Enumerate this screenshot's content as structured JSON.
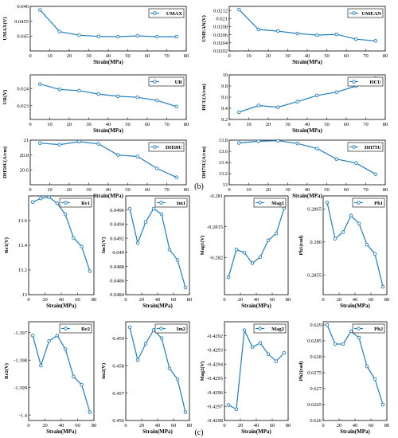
{
  "colors": {
    "series": "#1f7fbf",
    "axis": "#000000",
    "legend_border": "#000000"
  },
  "captions": {
    "b": "(b)",
    "c": "(c)"
  },
  "chart_data": [
    {
      "id": "umax",
      "type": "line",
      "row": "b",
      "legend": "UMAX",
      "xlabel": "Strain(MPa)",
      "ylabel": "UMAX(V)",
      "xlim": [
        0,
        80
      ],
      "xticks": [
        0,
        10,
        20,
        30,
        40,
        50,
        60,
        70,
        80
      ],
      "ylim": [
        0.0445,
        0.046
      ],
      "yticks": [
        "0.045",
        "0.0455",
        "0.046"
      ],
      "ytick_values": [
        0.045,
        0.0455,
        0.046
      ],
      "x": [
        5,
        15,
        25,
        35,
        45,
        55,
        65,
        75
      ],
      "values": [
        0.04588,
        0.04515,
        0.04503,
        0.04499,
        0.04498,
        0.04501,
        0.04498,
        0.04498
      ]
    },
    {
      "id": "umean",
      "type": "line",
      "row": "b",
      "legend": "UMEAN",
      "xlabel": "Strain(MPa)",
      "ylabel": "UMEAN(V)",
      "xlim": [
        0,
        80
      ],
      "xticks": [
        0,
        10,
        20,
        30,
        40,
        50,
        60,
        70,
        80
      ],
      "ylim": [
        0.0202,
        0.0213
      ],
      "yticks": [
        "0.0202",
        "0.0204",
        "0.0206",
        "0.0208",
        "0.021",
        "0.0212"
      ],
      "ytick_values": [
        0.0202,
        0.0204,
        0.0206,
        0.0208,
        0.021,
        0.0212
      ],
      "x": [
        5,
        15,
        25,
        35,
        45,
        55,
        65,
        75
      ],
      "values": [
        0.02122,
        0.02073,
        0.02069,
        0.02063,
        0.02059,
        0.02061,
        0.02049,
        0.02045
      ]
    },
    {
      "id": "ur",
      "type": "line",
      "row": "b",
      "legend": "UR",
      "xlabel": "Strain(MPa)",
      "ylabel": "UR(V)",
      "xlim": [
        0,
        80
      ],
      "xticks": [
        0,
        10,
        20,
        30,
        40,
        50,
        60,
        70,
        80
      ],
      "ylim": [
        0.0222,
        0.0248
      ],
      "yticks": [
        "0.023",
        "0.024"
      ],
      "ytick_values": [
        0.023,
        0.024
      ],
      "x": [
        5,
        15,
        25,
        35,
        45,
        55,
        65,
        75
      ],
      "values": [
        0.02426,
        0.02395,
        0.02388,
        0.02368,
        0.02355,
        0.02349,
        0.02331,
        0.02295
      ]
    },
    {
      "id": "hcu",
      "type": "line",
      "row": "b",
      "legend": "HCU",
      "xlabel": "Strain(MPa)",
      "ylabel": "HCU(A/cm)",
      "xlim": [
        0,
        80
      ],
      "xticks": [
        0,
        10,
        20,
        30,
        40,
        50,
        60,
        70,
        80
      ],
      "ylim": [
        9.2,
        10
      ],
      "yticks": [
        "9.2",
        "9.4",
        "9.6",
        "9.8",
        "10"
      ],
      "ytick_values": [
        9.2,
        9.4,
        9.6,
        9.8,
        10
      ],
      "x": [
        5,
        15,
        25,
        35,
        45,
        55,
        65,
        75
      ],
      "values": [
        9.33,
        9.45,
        9.42,
        9.52,
        9.63,
        9.69,
        9.8,
        9.94
      ]
    },
    {
      "id": "dh50u",
      "type": "line",
      "row": "b",
      "legend": "DH50U",
      "xlabel": "Strain(MPa)",
      "ylabel": "DH50U(A/cm)",
      "xlim": [
        0,
        80
      ],
      "xticks": [
        0,
        10,
        20,
        30,
        40,
        50,
        60,
        70,
        80
      ],
      "ylim": [
        20.4,
        21
      ],
      "yticks": [
        "20.6",
        "20.8",
        "21"
      ],
      "ytick_values": [
        20.6,
        20.8,
        21
      ],
      "x": [
        5,
        15,
        25,
        35,
        45,
        55,
        65,
        75
      ],
      "values": [
        20.96,
        20.94,
        20.98,
        20.95,
        20.8,
        20.78,
        20.62,
        20.5
      ]
    },
    {
      "id": "dh75u",
      "type": "line",
      "row": "b",
      "legend": "DH75U",
      "xlabel": "Strain(MPa)",
      "ylabel": "DH75U(A/cm)",
      "xlim": [
        0,
        80
      ],
      "xticks": [
        0,
        10,
        20,
        30,
        40,
        50,
        60,
        70,
        80
      ],
      "ylim": [
        13,
        13.8
      ],
      "yticks": [
        "13",
        "13.2",
        "13.4",
        "13.6",
        "13.8"
      ],
      "ytick_values": [
        13,
        13.2,
        13.4,
        13.6,
        13.8
      ],
      "x": [
        5,
        15,
        25,
        35,
        45,
        55,
        65,
        75
      ],
      "values": [
        13.75,
        13.78,
        13.79,
        13.74,
        13.65,
        13.46,
        13.39,
        13.19
      ]
    },
    {
      "id": "re1",
      "type": "line",
      "row": "c",
      "legend": "Re1",
      "xlabel": "Strain(MPa)",
      "ylabel": "Re1(V)",
      "xlim": [
        0,
        80
      ],
      "xticks": [
        0,
        20,
        40,
        60,
        80
      ],
      "ylim": [
        13,
        13.8
      ],
      "yticks": [
        "13",
        "13.2",
        "13.4",
        "13.6"
      ],
      "ytick_values": [
        13,
        13.2,
        13.4,
        13.6
      ],
      "x": [
        5,
        15,
        25,
        35,
        45,
        55,
        65,
        75
      ],
      "values": [
        13.75,
        13.78,
        13.79,
        13.74,
        13.65,
        13.46,
        13.39,
        13.19
      ]
    },
    {
      "id": "im1",
      "type": "line",
      "row": "c",
      "legend": "Im1",
      "xlabel": "Strain(MPa)",
      "ylabel": "Im1(V)",
      "xlim": [
        0,
        80
      ],
      "xticks": [
        0,
        20,
        40,
        60,
        80
      ],
      "ylim": [
        0.0484,
        0.0498
      ],
      "yticks": [
        "0.0484",
        "0.0486",
        "0.0488",
        "0.049",
        "0.0492",
        "0.0494",
        "0.0496"
      ],
      "ytick_values": [
        0.0484,
        0.0486,
        0.0488,
        0.049,
        0.0492,
        0.0494,
        0.0496
      ],
      "x": [
        5,
        15,
        25,
        35,
        45,
        55,
        65,
        75
      ],
      "values": [
        0.04962,
        0.04913,
        0.04943,
        0.04962,
        0.04954,
        0.04904,
        0.04889,
        0.0485
      ]
    },
    {
      "id": "mag1",
      "type": "line",
      "row": "c",
      "legend": "Mag1",
      "xlabel": "Strain(MPa)",
      "ylabel": "Mag1(V)",
      "xlim": [
        0,
        80
      ],
      "xticks": [
        0,
        20,
        40,
        60,
        80
      ],
      "ylim": [
        -0.2826,
        -0.281
      ],
      "yticks": [
        "-0.282",
        "-0.2815",
        "-0.281"
      ],
      "ytick_values": [
        -0.282,
        -0.2815,
        -0.281
      ],
      "x": [
        5,
        15,
        25,
        35,
        45,
        55,
        65,
        75
      ],
      "values": [
        -0.28232,
        -0.28187,
        -0.28192,
        -0.28209,
        -0.28199,
        -0.28172,
        -0.28161,
        -0.2812
      ]
    },
    {
      "id": "ph1",
      "type": "line",
      "row": "c",
      "legend": "Ph1",
      "xlabel": "Strain(MPa)",
      "ylabel": "Ph1(rad)",
      "xlim": [
        0,
        80
      ],
      "xticks": [
        0,
        20,
        40,
        60,
        80
      ],
      "ylim": [
        0.2852,
        0.2867
      ],
      "yticks": [
        "0.2855",
        "0.286",
        "0.2865"
      ],
      "ytick_values": [
        0.2855,
        0.286,
        0.2865
      ],
      "x": [
        5,
        15,
        25,
        35,
        45,
        55,
        65,
        75
      ],
      "values": [
        0.2866,
        0.28605,
        0.28615,
        0.2864,
        0.28628,
        0.28596,
        0.28582,
        0.28532
      ]
    },
    {
      "id": "re2",
      "type": "line",
      "row": "c",
      "legend": "Re2",
      "xlabel": "Strain(MPa)",
      "ylabel": "Re2(V)",
      "xlim": [
        0,
        80
      ],
      "xticks": [
        0,
        20,
        40,
        60,
        80
      ],
      "ylim": [
        -1.4002,
        -1.3966
      ],
      "yticks": [
        "-1.4",
        "-1.399",
        "-1.398",
        "-1.397"
      ],
      "ytick_values": [
        -1.4,
        -1.399,
        -1.398,
        -1.397
      ],
      "x": [
        5,
        15,
        25,
        35,
        45,
        55,
        65,
        75
      ],
      "values": [
        -1.3971,
        -1.3982,
        -1.3973,
        -1.3971,
        -1.3976,
        -1.3986,
        -1.3989,
        -1.3999
      ]
    },
    {
      "id": "im2",
      "type": "line",
      "row": "c",
      "legend": "Im2",
      "xlabel": "Strain(MPa)",
      "ylabel": "Im2(V)",
      "xlim": [
        0,
        80
      ],
      "xticks": [
        0,
        20,
        40,
        60,
        80
      ],
      "ylim": [
        0.456,
        0.4596
      ],
      "yticks": [
        "0.456",
        "0.457",
        "0.458",
        "0.459"
      ],
      "ytick_values": [
        0.456,
        0.457,
        0.458,
        0.459
      ],
      "x": [
        5,
        15,
        25,
        35,
        45,
        55,
        65,
        75
      ],
      "values": [
        0.4594,
        0.4582,
        0.4588,
        0.4593,
        0.459,
        0.4579,
        0.4575,
        0.4563
      ]
    },
    {
      "id": "mag2",
      "type": "line",
      "row": "c",
      "legend": "Mag2",
      "xlabel": "Strain(MPa)",
      "ylabel": "Mag2(V)",
      "xlim": [
        0,
        80
      ],
      "xticks": [
        0,
        20,
        40,
        60,
        80
      ],
      "ylim": [
        -0.4298,
        -0.4291
      ],
      "yticks": [
        "-0.4298",
        "-0.4297",
        "-0.4296",
        "-0.4295",
        "-0.4294",
        "-0.4293",
        "-0.4292"
      ],
      "ytick_values": [
        -0.4298,
        -0.4297,
        -0.4296,
        -0.4295,
        -0.4294,
        -0.4293,
        -0.4292
      ],
      "x": [
        5,
        15,
        25,
        35,
        45,
        55,
        65,
        75
      ],
      "values": [
        -0.42969,
        -0.42972,
        -0.42916,
        -0.42928,
        -0.42925,
        -0.42933,
        -0.42938,
        -0.42932
      ]
    },
    {
      "id": "ph2",
      "type": "line",
      "row": "c",
      "legend": "Ph2",
      "xlabel": "Strain(MPa)",
      "ylabel": "Ph2(rad)",
      "xlim": [
        0,
        80
      ],
      "xticks": [
        0,
        20,
        40,
        60,
        80
      ],
      "ylim": [
        0.626,
        0.6291
      ],
      "yticks": [
        "0.626",
        "0.6265",
        "0.627",
        "0.6275",
        "0.628",
        "0.6285",
        "0.629"
      ],
      "ytick_values": [
        0.626,
        0.6265,
        0.627,
        0.6275,
        0.628,
        0.6285,
        0.629
      ],
      "x": [
        5,
        15,
        25,
        35,
        45,
        55,
        65,
        75
      ],
      "values": [
        0.629,
        0.6284,
        0.6284,
        0.6288,
        0.6286,
        0.6277,
        0.6273,
        0.6265
      ]
    }
  ]
}
